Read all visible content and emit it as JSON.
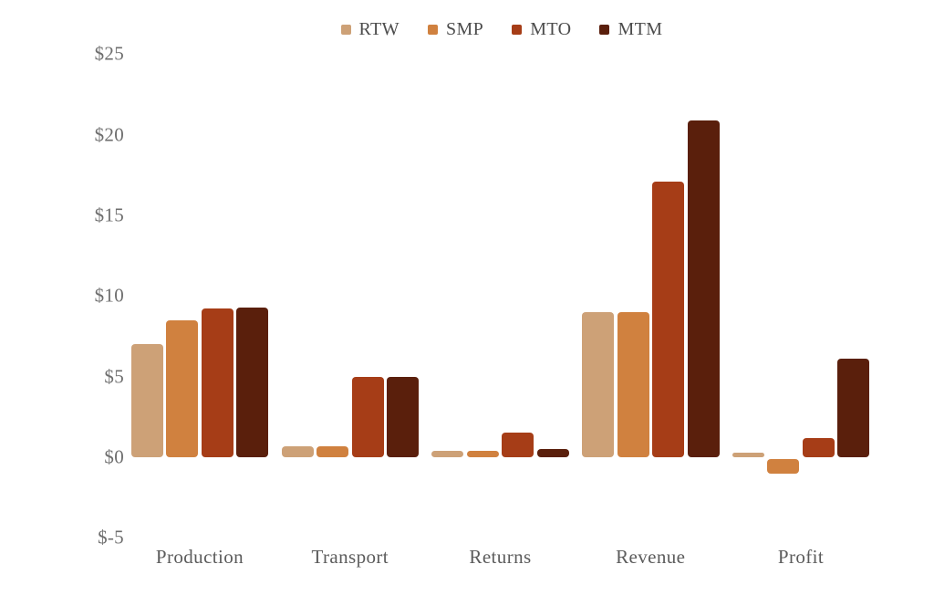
{
  "chart_data": {
    "type": "bar",
    "title": "",
    "categories": [
      "Production",
      "Transport",
      "Returns",
      "Revenue",
      "Profit"
    ],
    "series": [
      {
        "name": "RTW",
        "color": "#CDA177",
        "values": [
          7.0,
          0.7,
          0.4,
          9.0,
          0.3
        ]
      },
      {
        "name": "SMP",
        "color": "#D0813F",
        "values": [
          8.5,
          0.7,
          0.4,
          9.0,
          -1.1
        ]
      },
      {
        "name": "MTO",
        "color": "#A63D17",
        "values": [
          9.2,
          5.0,
          1.5,
          17.1,
          1.2
        ]
      },
      {
        "name": "MTM",
        "color": "#5A1F0C",
        "values": [
          9.3,
          5.0,
          0.5,
          20.9,
          6.1
        ]
      }
    ],
    "y_ticks": [
      "$25",
      "$20",
      "$15",
      "$10",
      "$5",
      "$0",
      "$-5"
    ],
    "y_tick_values": [
      25,
      20,
      15,
      10,
      5,
      0,
      -5
    ],
    "ylim": [
      -5,
      25
    ],
    "value_prefix": "$",
    "grid": false,
    "legend_position": "top-center",
    "colors": {
      "background": "#ffffff",
      "axis_text": "#6e6e6e",
      "category_text": "#5c5c5c",
      "legend_text": "#4c4c4c"
    }
  }
}
